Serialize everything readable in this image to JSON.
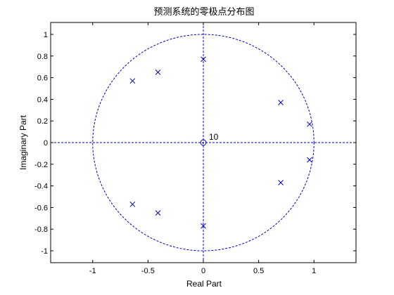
{
  "chart_data": {
    "type": "scatter",
    "title": "预测系统的零极点分布图",
    "xlabel": "Real Part",
    "ylabel": "Imaginary Part",
    "xlim": [
      -1.38,
      1.38
    ],
    "ylim": [
      -1.11,
      1.11
    ],
    "grid": false,
    "x_ticks": [
      -1,
      -0.5,
      0,
      0.5,
      1
    ],
    "x_tick_labels": [
      "-1",
      "-0.5",
      "0",
      "0.5",
      "1"
    ],
    "y_ticks": [
      -1,
      -0.8,
      -0.6,
      -0.4,
      -0.2,
      0,
      0.2,
      0.4,
      0.6,
      0.8,
      1
    ],
    "y_tick_labels": [
      "-1",
      "-0.8",
      "-0.6",
      "-0.4",
      "-0.2",
      "0",
      "0.2",
      "0.4",
      "0.6",
      "0.8",
      "1"
    ],
    "unit_circle": {
      "radius": 1,
      "style": "dashed"
    },
    "reference_lines": [
      "x=0",
      "y=0"
    ],
    "zeros": [
      {
        "x": 0,
        "y": 0
      }
    ],
    "zero_multiplicity_label": "10",
    "poles": [
      {
        "x": 0.0,
        "y": 0.77
      },
      {
        "x": 0.0,
        "y": -0.77
      },
      {
        "x": -0.41,
        "y": 0.65
      },
      {
        "x": -0.41,
        "y": -0.65
      },
      {
        "x": -0.64,
        "y": 0.57
      },
      {
        "x": -0.64,
        "y": -0.57
      },
      {
        "x": 0.7,
        "y": 0.37
      },
      {
        "x": 0.7,
        "y": -0.37
      },
      {
        "x": 0.96,
        "y": 0.17
      },
      {
        "x": 0.96,
        "y": -0.16
      }
    ],
    "colors": {
      "marker": "#0000c8",
      "axes": "#000000",
      "background": "#ffffff"
    }
  }
}
